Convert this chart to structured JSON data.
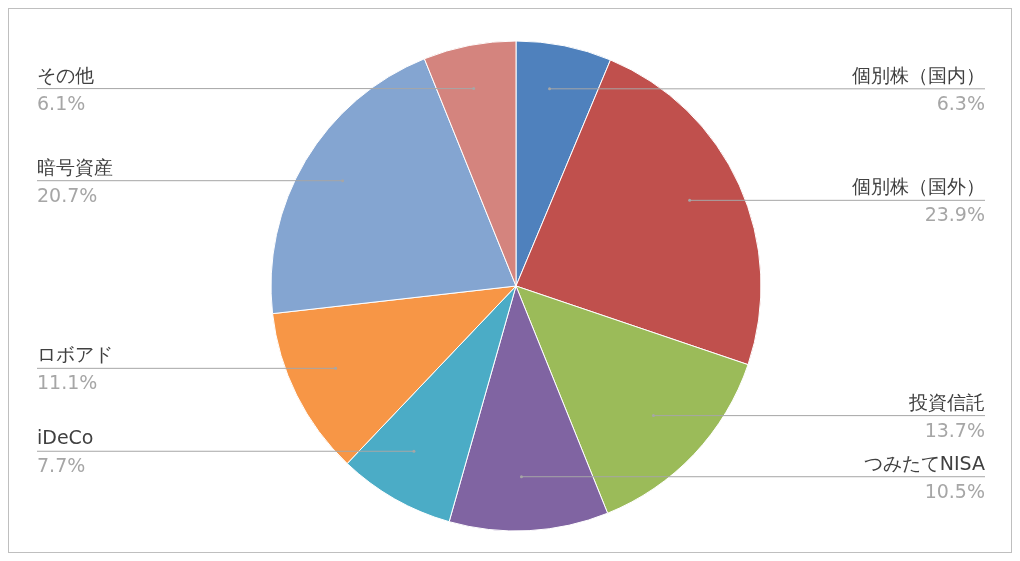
{
  "chart_data": {
    "type": "pie",
    "categories": [
      "個別株（国内）",
      "個別株（国外）",
      "投資信託",
      "つみたてNISA",
      "iDeCo",
      "ロボアド",
      "暗号資産",
      "その他"
    ],
    "values": [
      6.3,
      23.9,
      13.7,
      10.5,
      7.7,
      11.1,
      20.7,
      6.1
    ],
    "value_labels": [
      "6.3%",
      "23.9%",
      "13.7%",
      "10.5%",
      "7.7%",
      "11.1%",
      "20.7%",
      "6.1%"
    ],
    "colors": [
      "#4f81bd",
      "#c0504d",
      "#9bbb59",
      "#8064a2",
      "#4bacc6",
      "#f79646",
      "#84a5d1",
      "#d4847e"
    ]
  }
}
